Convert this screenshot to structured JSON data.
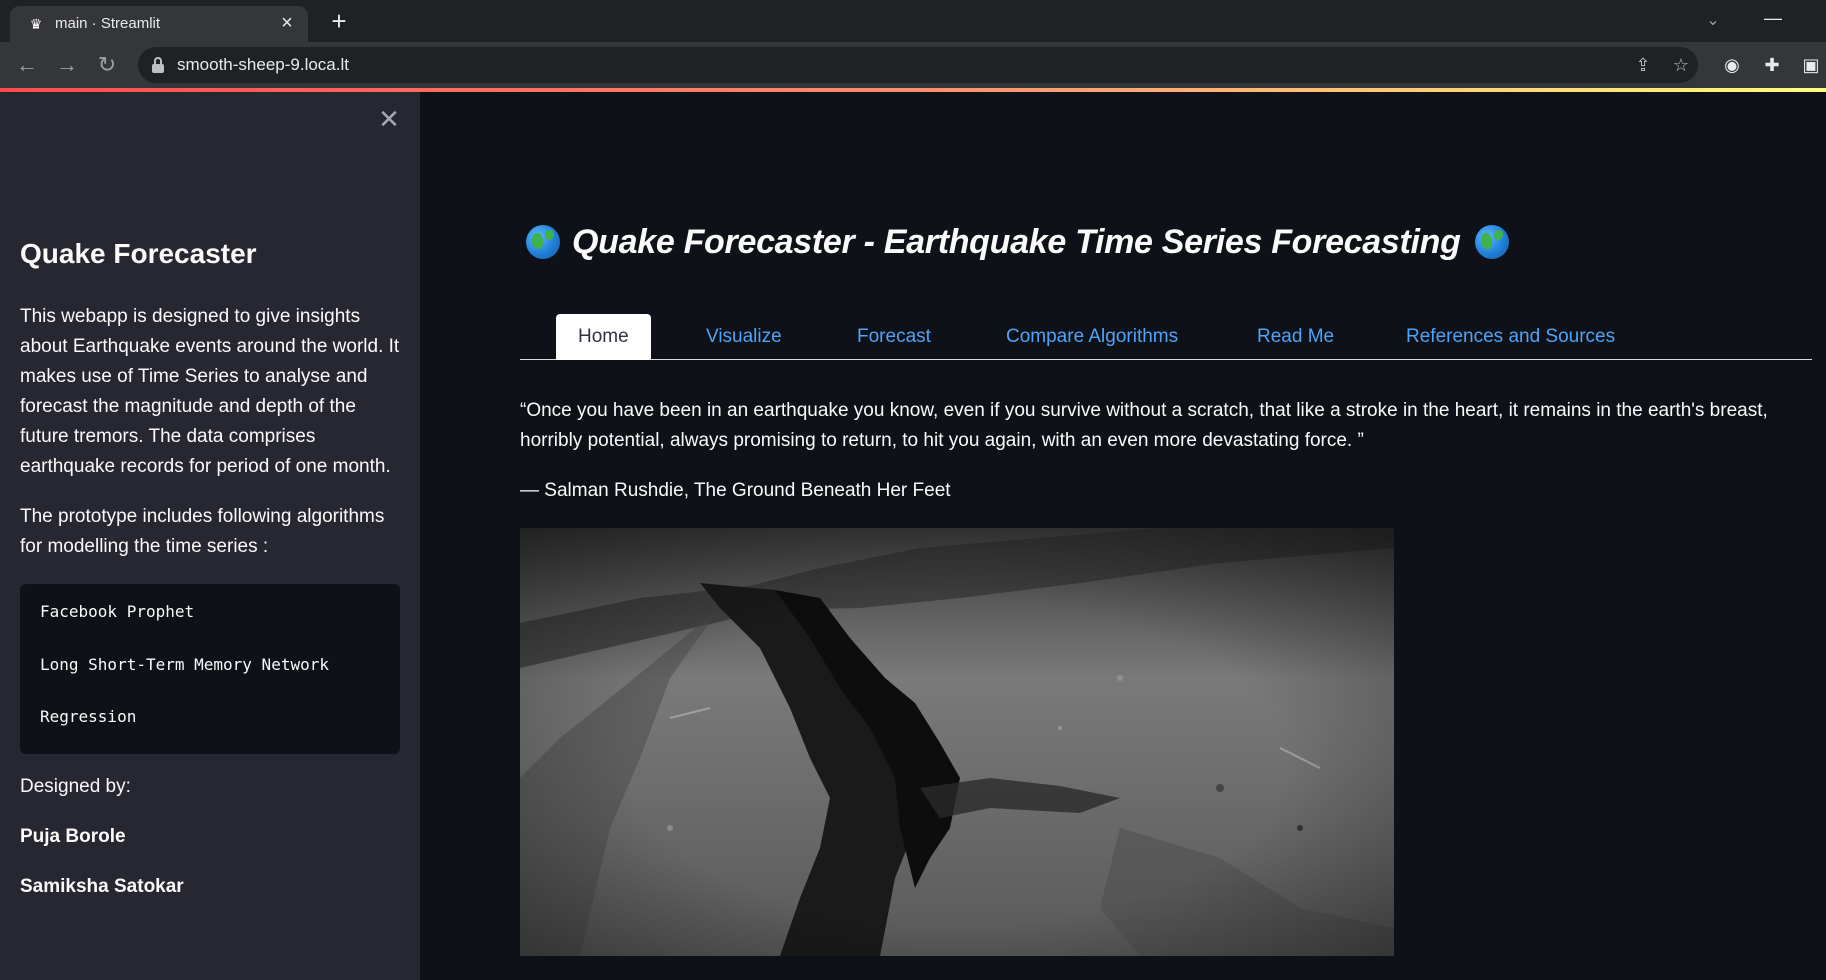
{
  "browser": {
    "tab_title": "main · Streamlit",
    "url": "smooth-sheep-9.loca.lt"
  },
  "sidebar": {
    "title": "Quake Forecaster",
    "description": "This webapp is designed to give insights about Earthquake events around the world. It makes use of Time Series to analyse and forecast the magnitude and depth of the future tremors. The data comprises earthquake records for period of one month.",
    "prototype_text": "The prototype includes following algorithms for modelling the time series :",
    "algorithms": [
      "Facebook Prophet",
      "Long Short-Term Memory Network",
      "Regression"
    ],
    "designed_by": "Designed by:",
    "authors": [
      "Puja Borole",
      "Samiksha Satokar"
    ]
  },
  "main": {
    "title": "Quake Forecaster - Earthquake Time Series Forecasting",
    "tabs": [
      {
        "label": "Home",
        "active": true
      },
      {
        "label": "Visualize",
        "active": false
      },
      {
        "label": "Forecast",
        "active": false
      },
      {
        "label": "Compare Algorithms",
        "active": false
      },
      {
        "label": "Read Me",
        "active": false
      },
      {
        "label": "References and Sources",
        "active": false
      }
    ],
    "quote": "“Once you have been in an earthquake you know, even if you survive without a scratch, that like a stroke in the heart, it remains in the earth's breast, horribly potential, always promising to return, to hit you again, with an even more devastating force. ”",
    "quote_author": "— Salman Rushdie, The Ground Beneath Her Feet"
  },
  "colors": {
    "sidebar_bg": "#262730",
    "main_bg": "#0e1117",
    "tab_link": "#4fa3f7"
  },
  "icons": [
    "crown-icon",
    "close-icon",
    "plus-icon",
    "chevron-down-icon",
    "minimize-icon",
    "back-icon",
    "forward-icon",
    "reload-icon",
    "lock-icon",
    "share-icon",
    "star-icon",
    "grammarly-icon",
    "puzzle-icon",
    "sidepanel-icon",
    "globe-icon"
  ]
}
